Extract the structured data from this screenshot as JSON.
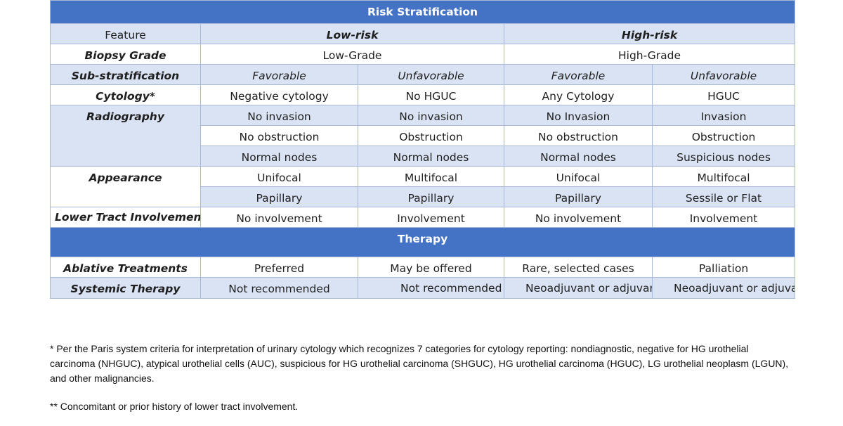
{
  "table": {
    "risk_header": "Risk Stratification",
    "feature_header": "Feature",
    "low_risk": "Low-risk",
    "high_risk": "High-risk",
    "biopsy_grade": {
      "label": "Biopsy Grade",
      "low": "Low-Grade",
      "high": "High-Grade"
    },
    "sub_stratification": {
      "label": "Sub-stratification",
      "values": [
        "Favorable",
        "Unfavorable",
        "Favorable",
        "Unfavorable"
      ]
    },
    "cytology": {
      "label": "Cytology*",
      "values": [
        "Negative cytology",
        "No HGUC",
        "Any Cytology",
        "HGUC"
      ]
    },
    "radiography": {
      "label": "Radiography",
      "rows": [
        [
          "No invasion",
          "No invasion",
          "No Invasion",
          "Invasion"
        ],
        [
          "No obstruction",
          "Obstruction",
          "No obstruction",
          "Obstruction"
        ],
        [
          "Normal nodes",
          "Normal nodes",
          "Normal nodes",
          "Suspicious nodes"
        ]
      ]
    },
    "appearance": {
      "label": "Appearance",
      "rows": [
        [
          "Unifocal",
          "Multifocal",
          "Unifocal",
          "Multifocal"
        ],
        [
          "Papillary",
          "Papillary",
          "Papillary",
          "Sessile or Flat"
        ]
      ]
    },
    "lower_tract": {
      "label": "Lower Tract Involvement**",
      "values": [
        "No involvement",
        "Involvement",
        "No involvement",
        "Involvement"
      ]
    },
    "therapy_header": "Therapy",
    "ablative": {
      "label": "Ablative Treatments",
      "values": [
        "Preferred",
        "May be offered",
        "Rare, selected cases",
        "Palliation"
      ]
    },
    "systemic": {
      "label": "Systemic Therapy",
      "values": [
        "Not recommended",
        "Not recommended",
        "Neoadjuvant or adjuvant",
        "Neoadjuvant or adjuvant"
      ]
    }
  },
  "footnotes": {
    "cytology_note": "* Per the Paris system criteria for interpretation of urinary cytology which recognizes 7 categories for cytology reporting: nondiagnostic, negative for HG urothelial carcinoma (NHGUC), atypical urothelial cells (AUC), suspicious for HG urothelial carcinoma (SHGUC), HG urothelial carcinoma (HGUC), LG urothelial neoplasm (LGUN), and other malignancies.",
    "lower_tract_note": "** Concomitant or prior history of lower tract involvement."
  },
  "colors": {
    "header_band": "#4472c4",
    "shaded_cell": "#dae3f3",
    "border": "#a9b8d9"
  }
}
